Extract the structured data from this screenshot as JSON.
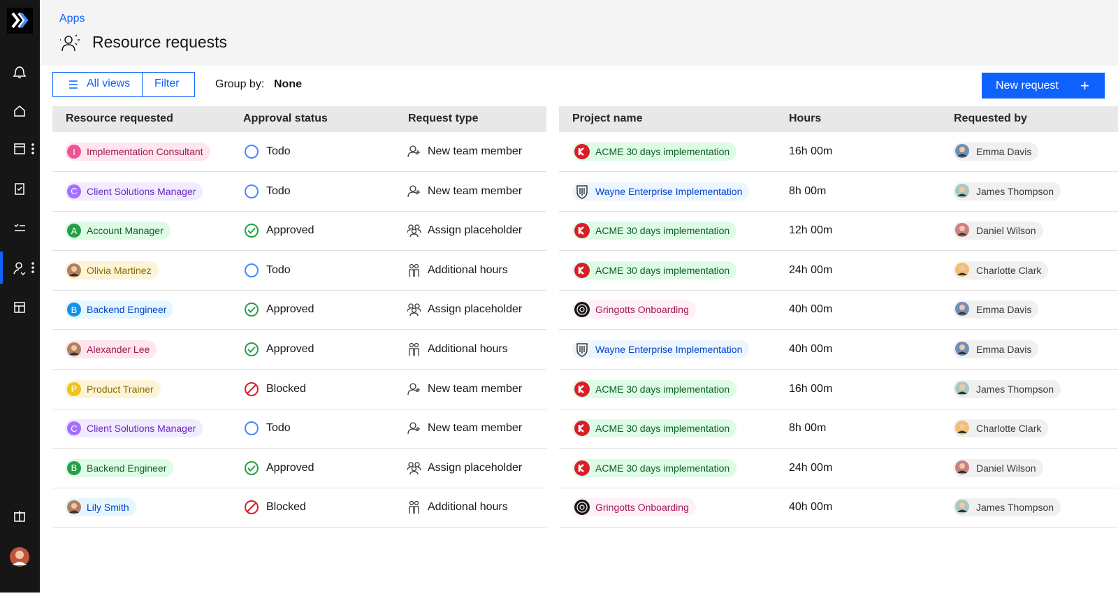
{
  "header": {
    "breadcrumb": "Apps",
    "title": "Resource requests"
  },
  "toolbar": {
    "views": "All views",
    "filter": "Filter",
    "group_by_label": "Group by:",
    "group_by_value": "None",
    "new_request": "New request"
  },
  "table": {
    "columns": [
      "Resource requested",
      "Approval status",
      "Request type",
      "Project name",
      "Hours",
      "Requested by"
    ],
    "rows": [
      {
        "resource": {
          "initial": "I",
          "label": "Implementation Consultant"
        },
        "status": "Todo",
        "type": "New team member",
        "project": "ACME 30 days implementation",
        "hours": "16h 00m",
        "requested_by": "Emma Davis"
      },
      {
        "resource": {
          "initial": "C",
          "label": "Client Solutions Manager"
        },
        "status": "Todo",
        "type": "New team member",
        "project": "Wayne Enterprise Implementation",
        "hours": "8h 00m",
        "requested_by": "James Thompson"
      },
      {
        "resource": {
          "initial": "A",
          "label": "Account Manager"
        },
        "status": "Approved",
        "type": "Assign placeholder",
        "project": "ACME 30 days implementation",
        "hours": "12h 00m",
        "requested_by": "Daniel Wilson"
      },
      {
        "resource": {
          "label": "Olivia Martinez"
        },
        "status": "Todo",
        "type": "Additional hours",
        "project": "ACME 30 days implementation",
        "hours": "24h 00m",
        "requested_by": "Charlotte Clark"
      },
      {
        "resource": {
          "initial": "B",
          "label": "Backend Engineer"
        },
        "status": "Approved",
        "type": "Assign placeholder",
        "project": "Gringotts Onboarding",
        "hours": "40h 00m",
        "requested_by": "Emma Davis"
      },
      {
        "resource": {
          "label": "Alexander Lee"
        },
        "status": "Approved",
        "type": "Additional hours",
        "project": "Wayne Enterprise Implementation",
        "hours": "40h 00m",
        "requested_by": "Emma Davis"
      },
      {
        "resource": {
          "initial": "P",
          "label": "Product Trainer"
        },
        "status": "Blocked",
        "type": "New team member",
        "project": "ACME 30 days implementation",
        "hours": "16h 00m",
        "requested_by": "James Thompson"
      },
      {
        "resource": {
          "initial": "C",
          "label": "Client Solutions Manager"
        },
        "status": "Todo",
        "type": "New team member",
        "project": "ACME 30 days implementation",
        "hours": "8h 00m",
        "requested_by": "Charlotte Clark"
      },
      {
        "resource": {
          "initial": "B",
          "label": "Backend Engineer"
        },
        "status": "Approved",
        "type": "Assign placeholder",
        "project": "ACME 30 days implementation",
        "hours": "24h 00m",
        "requested_by": "Daniel Wilson"
      },
      {
        "resource": {
          "label": "Lily Smith"
        },
        "status": "Blocked",
        "type": "Additional hours",
        "project": "Gringotts Onboarding",
        "hours": "40h 00m",
        "requested_by": "James Thompson"
      }
    ]
  }
}
